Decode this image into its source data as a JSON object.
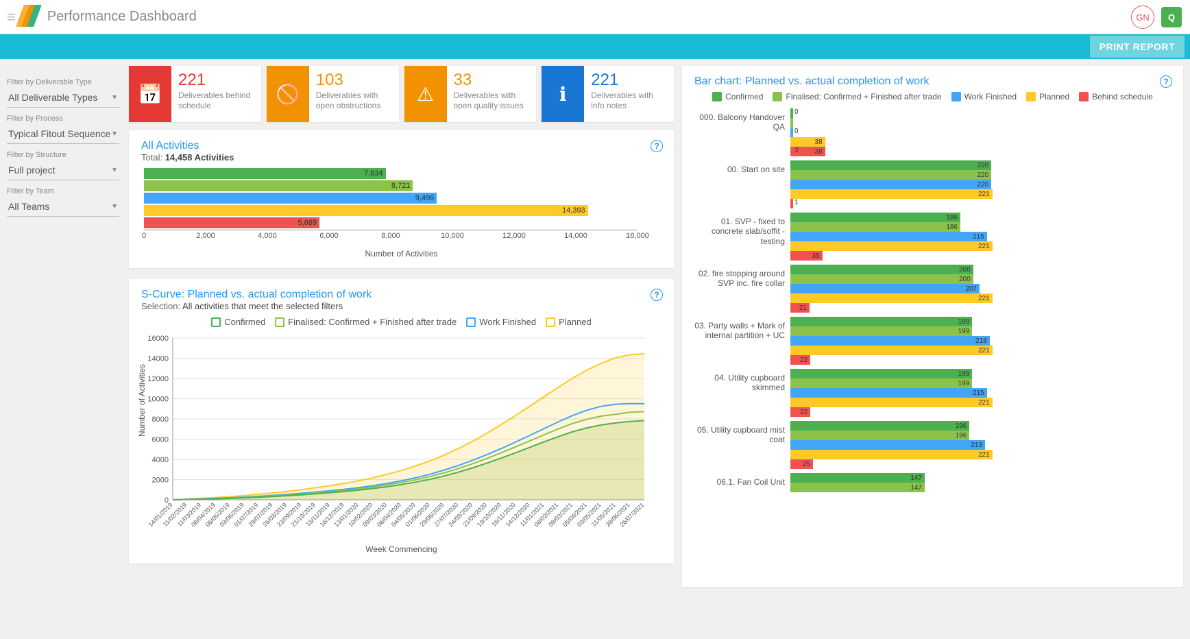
{
  "header": {
    "title": "Performance Dashboard",
    "avatar_initials": "GN",
    "badge_letter": "Q",
    "logo_colors": [
      "#f9b233",
      "#f29200",
      "#36b37e"
    ]
  },
  "actions": {
    "print_report": "PRINT REPORT"
  },
  "filters": {
    "deliverable_type": {
      "label": "Filter by Deliverable Type",
      "value": "All Deliverable Types"
    },
    "process": {
      "label": "Filter by Process",
      "value": "Typical Fitout Sequence"
    },
    "structure": {
      "label": "Filter by Structure",
      "value": "Full project"
    },
    "team": {
      "label": "Filter by Team",
      "value": "All Teams"
    }
  },
  "kpis": [
    {
      "value": "221",
      "desc": "Deliverables behind schedule",
      "color": "#e53935",
      "value_color": "#e53935",
      "icon": "calendar"
    },
    {
      "value": "103",
      "desc": "Deliverables with open obstructions",
      "color": "#f29200",
      "value_color": "#f29200",
      "icon": "blocked"
    },
    {
      "value": "33",
      "desc": "Deliverables with open quality issues",
      "color": "#f29200",
      "value_color": "#f29200",
      "icon": "warning"
    },
    {
      "value": "221",
      "desc": "Deliverables with info notes",
      "color": "#1976d2",
      "value_color": "#1976d2",
      "icon": "info"
    }
  ],
  "colors": {
    "confirmed": "#4caf50",
    "finalised": "#8bc34a",
    "finished": "#42a5f5",
    "planned": "#ffca28",
    "behind": "#ef5350",
    "grid": "#e0e0e0",
    "axis": "#999"
  },
  "all_activities": {
    "title": "All Activities",
    "total_label": "Total:",
    "total_value": "14,458 Activities",
    "axis_label": "Number of Activities",
    "x_max": 16000,
    "x_ticks": [
      0,
      2000,
      4000,
      6000,
      8000,
      10000,
      12000,
      14000,
      16000
    ],
    "x_tick_labels": [
      "0",
      "2,000",
      "4,000",
      "6,000",
      "8,000",
      "10,000",
      "12,000",
      "14,000",
      "16,000"
    ],
    "bars": [
      {
        "value": 7834,
        "label": "7,834",
        "color": "#4caf50"
      },
      {
        "value": 8721,
        "label": "8,721",
        "color": "#8bc34a"
      },
      {
        "value": 9496,
        "label": "9,496",
        "color": "#42a5f5"
      },
      {
        "value": 14393,
        "label": "14,393",
        "color": "#ffca28"
      },
      {
        "value": 5689,
        "label": "5,689",
        "color": "#ef5350"
      }
    ]
  },
  "scurve": {
    "title": "S-Curve: Planned vs. actual completion of work",
    "selection_label": "Selection:",
    "selection_value": "All activities that meet the selected filters",
    "y_label": "Number of Activities",
    "x_label": "Week Commencing",
    "legend": {
      "confirmed": "Confirmed",
      "finalised": "Finalised: Confirmed + Finished after trade",
      "finished": "Work Finished",
      "planned": "Planned"
    },
    "y_max": 16000,
    "y_ticks": [
      0,
      2000,
      4000,
      6000,
      8000,
      10000,
      12000,
      14000,
      16000
    ],
    "x_dates": [
      "14/01/2019",
      "11/02/2019",
      "11/03/2019",
      "08/04/2019",
      "06/05/2019",
      "03/06/2019",
      "01/07/2019",
      "29/07/2019",
      "26/08/2019",
      "23/09/2019",
      "21/10/2019",
      "18/11/2019",
      "16/12/2019",
      "13/01/2020",
      "10/02/2020",
      "09/03/2020",
      "06/04/2020",
      "04/05/2020",
      "01/06/2020",
      "29/06/2020",
      "27/07/2020",
      "24/08/2020",
      "21/09/2020",
      "19/10/2020",
      "16/11/2020",
      "14/12/2020",
      "11/01/2021",
      "08/02/2021",
      "08/03/2021",
      "05/04/2021",
      "03/05/2021",
      "31/05/2021",
      "28/06/2021",
      "26/07/2021"
    ],
    "series": {
      "planned": [
        0,
        80,
        150,
        230,
        320,
        420,
        540,
        680,
        830,
        1000,
        1200,
        1400,
        1620,
        1880,
        2180,
        2520,
        2900,
        3350,
        3850,
        4420,
        5070,
        5800,
        6600,
        7450,
        8350,
        9280,
        10220,
        11150,
        12050,
        12850,
        13500,
        14050,
        14350,
        14450
      ],
      "finished": [
        0,
        50,
        90,
        140,
        200,
        270,
        350,
        440,
        540,
        650,
        770,
        900,
        1040,
        1200,
        1400,
        1620,
        1880,
        2180,
        2530,
        2940,
        3400,
        3920,
        4480,
        5080,
        5720,
        6380,
        7050,
        7720,
        8350,
        8870,
        9250,
        9450,
        9520,
        9500
      ],
      "finalised": [
        0,
        40,
        75,
        120,
        170,
        230,
        300,
        380,
        470,
        570,
        680,
        800,
        930,
        1080,
        1260,
        1470,
        1710,
        1980,
        2300,
        2670,
        3100,
        3580,
        4100,
        4660,
        5240,
        5840,
        6440,
        7020,
        7560,
        7980,
        8280,
        8460,
        8660,
        8721
      ],
      "confirmed": [
        0,
        30,
        60,
        100,
        145,
        195,
        255,
        325,
        405,
        495,
        595,
        705,
        825,
        960,
        1120,
        1300,
        1510,
        1750,
        2030,
        2360,
        2740,
        3170,
        3640,
        4140,
        4660,
        5200,
        5740,
        6260,
        6740,
        7120,
        7410,
        7600,
        7750,
        7834
      ]
    }
  },
  "grouped": {
    "title": "Bar chart: Planned vs. actual completion of work",
    "legend": {
      "confirmed": "Confirmed",
      "finalised": "Finalised: Confirmed + Finished after trade",
      "finished": "Work Finished",
      "planned": "Planned",
      "behind": "Behind schedule"
    },
    "x_max": 225,
    "rows": [
      {
        "label": "000. Balcony Handover QA",
        "values": {
          "confirmed": 0,
          "finalised": 0,
          "finished": 2,
          "planned": 38,
          "behind": 38
        }
      },
      {
        "label": "00. Start on site",
        "values": {
          "confirmed": 220,
          "finalised": 220,
          "finished": 220,
          "planned": 221,
          "behind": 1
        }
      },
      {
        "label": "01. SVP - fixed to concrete slab/soffit - testing",
        "values": {
          "confirmed": 186,
          "finalised": 186,
          "finished": 215,
          "planned": 221,
          "behind": 35
        }
      },
      {
        "label": "02. fire stopping around SVP inc. fire collar",
        "values": {
          "confirmed": 200,
          "finalised": 200,
          "finished": 207,
          "planned": 221,
          "behind": 21
        }
      },
      {
        "label": "03. Party walls + Mark of internal partition + UC",
        "values": {
          "confirmed": 199,
          "finalised": 199,
          "finished": 218,
          "planned": 221,
          "behind": 22
        }
      },
      {
        "label": "04. Utility cupboard skimmed",
        "values": {
          "confirmed": 199,
          "finalised": 199,
          "finished": 215,
          "planned": 221,
          "behind": 22
        }
      },
      {
        "label": "05. Utility cupboard mist coat",
        "values": {
          "confirmed": 196,
          "finalised": 196,
          "finished": 213,
          "planned": 221,
          "behind": 25
        }
      },
      {
        "label": "06.1. Fan Coil Unit",
        "values": {
          "confirmed": 147,
          "finalised": 147,
          "finished": null,
          "planned": null,
          "behind": null
        }
      }
    ]
  }
}
